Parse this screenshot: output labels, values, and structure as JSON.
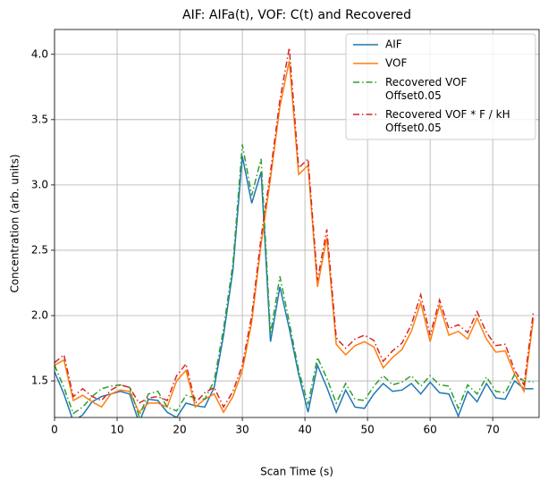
{
  "chart_data": {
    "type": "line",
    "title": "AIF: AIFa(t), VOF: C(t) and Recovered",
    "xlabel": "Scan Time (s)",
    "ylabel": "Concentration (arb. units)",
    "x": [
      0,
      1.5,
      3,
      4.5,
      6,
      7.5,
      9,
      10.5,
      12,
      13.5,
      15,
      16.5,
      18,
      19.5,
      21,
      22.5,
      24,
      25.5,
      27,
      28.5,
      30,
      31.5,
      33,
      34.5,
      36,
      37.5,
      39,
      40.5,
      42,
      43.5,
      45,
      46.5,
      48,
      49.5,
      51,
      52.5,
      54,
      55.5,
      57,
      58.5,
      60,
      61.5,
      63,
      64.5,
      66,
      67.5,
      69,
      70.5,
      72,
      73.5,
      75,
      76.5
    ],
    "series": [
      {
        "name": "AIF",
        "color": "#1f77b4",
        "dash": "solid",
        "values": [
          1.57,
          1.4,
          1.19,
          1.24,
          1.34,
          1.38,
          1.4,
          1.42,
          1.4,
          1.18,
          1.36,
          1.35,
          1.26,
          1.22,
          1.33,
          1.31,
          1.3,
          1.45,
          1.85,
          2.35,
          3.22,
          2.86,
          3.1,
          1.8,
          2.22,
          1.9,
          1.55,
          1.26,
          1.62,
          1.45,
          1.26,
          1.43,
          1.3,
          1.29,
          1.4,
          1.48,
          1.42,
          1.43,
          1.48,
          1.4,
          1.49,
          1.41,
          1.4,
          1.23,
          1.42,
          1.34,
          1.48,
          1.37,
          1.36,
          1.5,
          1.44,
          1.44
        ]
      },
      {
        "name": "VOF",
        "color": "#ff7f0e",
        "dash": "solid",
        "values": [
          1.62,
          1.66,
          1.35,
          1.39,
          1.34,
          1.3,
          1.4,
          1.43,
          1.42,
          1.26,
          1.33,
          1.33,
          1.3,
          1.5,
          1.58,
          1.3,
          1.36,
          1.4,
          1.26,
          1.38,
          1.58,
          1.95,
          2.55,
          3.05,
          3.6,
          3.95,
          3.08,
          3.15,
          2.22,
          2.6,
          1.78,
          1.7,
          1.77,
          1.8,
          1.76,
          1.6,
          1.68,
          1.74,
          1.88,
          2.1,
          1.8,
          2.08,
          1.85,
          1.88,
          1.82,
          1.98,
          1.82,
          1.72,
          1.73,
          1.55,
          1.42,
          1.98
        ]
      },
      {
        "name": "Recovered VOF\nOffset0.05",
        "color": "#2ca02c",
        "dash": "dashdot",
        "values": [
          1.62,
          1.45,
          1.25,
          1.3,
          1.38,
          1.44,
          1.46,
          1.47,
          1.45,
          1.23,
          1.4,
          1.42,
          1.3,
          1.27,
          1.39,
          1.37,
          1.36,
          1.5,
          1.9,
          2.4,
          3.31,
          2.92,
          3.2,
          1.86,
          2.3,
          1.95,
          1.58,
          1.32,
          1.68,
          1.52,
          1.33,
          1.48,
          1.36,
          1.35,
          1.46,
          1.54,
          1.47,
          1.49,
          1.54,
          1.46,
          1.54,
          1.47,
          1.46,
          1.29,
          1.47,
          1.4,
          1.53,
          1.42,
          1.41,
          1.55,
          1.5,
          1.49
        ]
      },
      {
        "name": "Recovered VOF * F / kH\nOffset0.05",
        "color": "#d62728",
        "dash": "dashdot",
        "values": [
          1.64,
          1.7,
          1.38,
          1.44,
          1.38,
          1.35,
          1.43,
          1.47,
          1.45,
          1.33,
          1.37,
          1.38,
          1.35,
          1.54,
          1.63,
          1.33,
          1.41,
          1.45,
          1.3,
          1.42,
          1.62,
          2.0,
          2.6,
          3.1,
          3.65,
          4.05,
          3.13,
          3.2,
          2.27,
          2.66,
          1.83,
          1.75,
          1.82,
          1.85,
          1.81,
          1.65,
          1.73,
          1.79,
          1.93,
          2.16,
          1.85,
          2.12,
          1.9,
          1.93,
          1.87,
          2.03,
          1.87,
          1.77,
          1.78,
          1.58,
          1.47,
          2.03
        ]
      }
    ],
    "xlim": [
      0,
      77.4
    ],
    "xticks": [
      0,
      10,
      20,
      30,
      40,
      50,
      60,
      70
    ],
    "ylim": [
      1.22,
      4.19
    ],
    "yticks": [
      1.5,
      {
        "value": 2.0,
        "label": "2.0"
      },
      2.5,
      {
        "value": 3.0,
        "label": "3.0"
      },
      3.5,
      {
        "value": 4.0,
        "label": "4.0"
      }
    ],
    "grid": true,
    "legend": "upper right"
  }
}
